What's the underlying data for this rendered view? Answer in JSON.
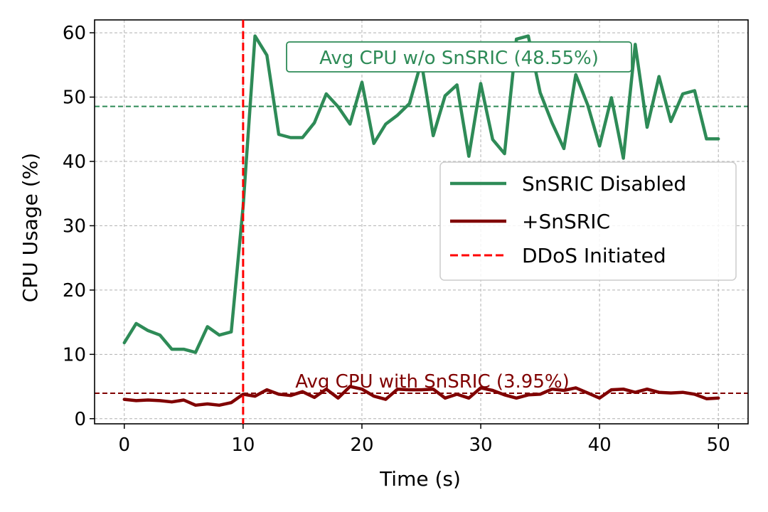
{
  "chart_data": {
    "type": "line",
    "title": "",
    "xlabel": "Time (s)",
    "ylabel": "CPU Usage (%)",
    "xlim": [
      -2.5,
      52.5
    ],
    "ylim": [
      -0.8,
      62
    ],
    "xticks": [
      0,
      10,
      20,
      30,
      40,
      50
    ],
    "yticks": [
      0,
      10,
      20,
      30,
      40,
      50,
      60
    ],
    "grid": true,
    "legend_position": "center-right",
    "x": [
      0,
      1,
      2,
      3,
      4,
      5,
      6,
      7,
      8,
      9,
      10,
      11,
      12,
      13,
      14,
      15,
      16,
      17,
      18,
      19,
      20,
      21,
      22,
      23,
      24,
      25,
      26,
      27,
      28,
      29,
      30,
      31,
      32,
      33,
      34,
      35,
      36,
      37,
      38,
      39,
      40,
      41,
      42,
      43,
      44,
      45,
      46,
      47,
      48,
      49,
      50
    ],
    "series": [
      {
        "name": "SnSRIC Disabled",
        "color": "#2e8b57",
        "values": [
          11.8,
          14.8,
          13.7,
          13.0,
          10.8,
          10.8,
          10.3,
          14.3,
          13.0,
          13.5,
          33.0,
          59.5,
          56.5,
          44.2,
          43.7,
          43.7,
          46.0,
          50.5,
          48.5,
          45.8,
          52.3,
          42.8,
          45.8,
          47.2,
          49.0,
          55.5,
          44.0,
          50.2,
          51.9,
          40.8,
          52.1,
          43.4,
          41.2,
          59.0,
          59.5,
          50.7,
          46.0,
          42.0,
          53.5,
          48.8,
          42.4,
          49.9,
          40.5,
          58.2,
          45.3,
          53.2,
          46.2,
          50.5,
          51.0,
          43.5,
          43.5
        ]
      },
      {
        "name": "+SnSRIC",
        "color": "#800000",
        "values": [
          3.0,
          2.8,
          2.9,
          2.8,
          2.6,
          2.9,
          2.1,
          2.3,
          2.1,
          2.5,
          3.8,
          3.5,
          4.5,
          3.8,
          3.6,
          4.2,
          3.3,
          4.6,
          3.2,
          5.0,
          4.6,
          3.5,
          3.0,
          4.6,
          4.5,
          4.5,
          4.6,
          3.2,
          3.8,
          3.2,
          4.8,
          4.4,
          3.7,
          3.2,
          3.7,
          3.8,
          4.6,
          4.4,
          4.8,
          4.0,
          3.2,
          4.5,
          4.6,
          4.1,
          4.6,
          4.1,
          4.0,
          4.1,
          3.8,
          3.1,
          3.2
        ]
      }
    ],
    "reference_lines": [
      {
        "axis": "y",
        "value": 48.55,
        "color": "#2e8b57",
        "label": "Avg CPU w/o SnSRIC (48.55%)",
        "boxed": true
      },
      {
        "axis": "y",
        "value": 3.95,
        "color": "#800000",
        "label": "Avg CPU with SnSRIC (3.95%)",
        "boxed": false
      },
      {
        "axis": "x",
        "value": 10,
        "color": "#ff0000",
        "name": "DDoS Initiated"
      }
    ],
    "legend": [
      {
        "label": "SnSRIC Disabled",
        "color": "#2e8b57",
        "style": "solid"
      },
      {
        "label": "+SnSRIC",
        "color": "#800000",
        "style": "solid"
      },
      {
        "label": "DDoS Initiated",
        "color": "#ff0000",
        "style": "dashed"
      }
    ]
  }
}
